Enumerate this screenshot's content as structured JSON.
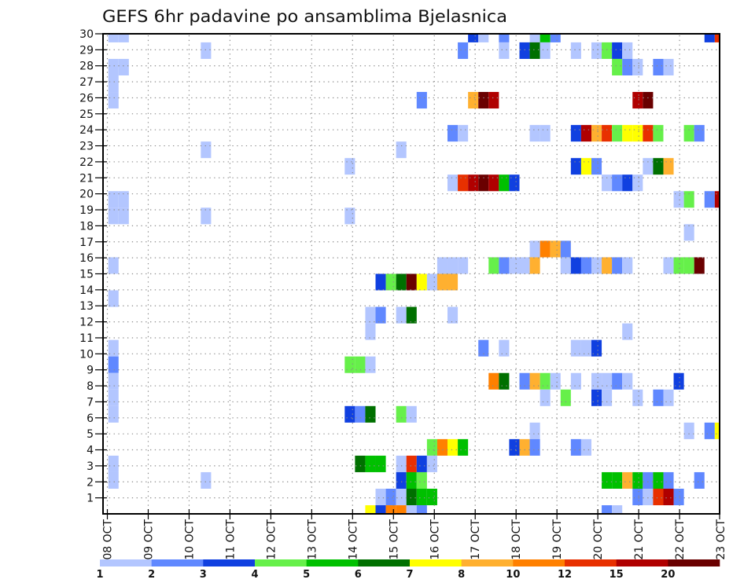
{
  "chart_data": {
    "type": "heatmap",
    "title": "GEFS 6hr padavine po ansamblima Bjelasnica",
    "xlabel": "",
    "ylabel": "",
    "x_ticks": [
      "08 OCT",
      "09 OCT",
      "10 OCT",
      "11 OCT",
      "12 OCT",
      "13 OCT",
      "14 OCT",
      "15 OCT",
      "16 OCT",
      "17 OCT",
      "18 OCT",
      "19 OCT",
      "20 OCT",
      "21 OCT",
      "22 OCT",
      "23 OCT"
    ],
    "y_ticks": [
      "1",
      "2",
      "3",
      "4",
      "5",
      "6",
      "7",
      "8",
      "9",
      "10",
      "11",
      "12",
      "13",
      "14",
      "15",
      "16",
      "17",
      "18",
      "19",
      "20",
      "21",
      "22",
      "23",
      "24",
      "25",
      "26",
      "27",
      "28",
      "29",
      "30"
    ],
    "time_steps_per_day": 4,
    "num_time_steps": 60,
    "members": 30,
    "grid": true,
    "legend_position": "bottom",
    "levels": [
      {
        "label": "1",
        "color": "#b3c6ff"
      },
      {
        "label": "2",
        "color": "#6088ff"
      },
      {
        "label": "3",
        "color": "#1040e0"
      },
      {
        "label": "4",
        "color": "#66f04a"
      },
      {
        "label": "5",
        "color": "#00c000"
      },
      {
        "label": "6",
        "color": "#007000"
      },
      {
        "label": "7",
        "color": "#ffff00"
      },
      {
        "label": "8",
        "color": "#ffb030"
      },
      {
        "label": "10",
        "color": "#ff8000"
      },
      {
        "label": "12",
        "color": "#e83000"
      },
      {
        "label": "15",
        "color": "#b00000"
      },
      {
        "label": "20",
        "color": "#6a0000"
      }
    ],
    "rows": [
      {
        "member": 30,
        "cells": [
          [
            0,
            0
          ],
          [
            1,
            0
          ],
          [
            35,
            2
          ],
          [
            36,
            0
          ],
          [
            38,
            1
          ],
          [
            41,
            0
          ],
          [
            42,
            4
          ],
          [
            43,
            1
          ],
          [
            58,
            2
          ],
          [
            59,
            9
          ]
        ]
      },
      {
        "member": 29,
        "cells": [
          [
            9,
            0
          ],
          [
            34,
            1
          ],
          [
            38,
            0
          ],
          [
            40,
            2
          ],
          [
            41,
            5
          ],
          [
            42,
            0
          ],
          [
            45,
            0
          ],
          [
            47,
            0
          ],
          [
            48,
            3
          ],
          [
            49,
            2
          ],
          [
            50,
            0
          ]
        ]
      },
      {
        "member": 28,
        "cells": [
          [
            0,
            0
          ],
          [
            1,
            0
          ],
          [
            49,
            3
          ],
          [
            50,
            1
          ],
          [
            51,
            0
          ],
          [
            53,
            1
          ],
          [
            54,
            0
          ]
        ]
      },
      {
        "member": 27,
        "cells": [
          [
            0,
            0
          ]
        ]
      },
      {
        "member": 26,
        "cells": [
          [
            0,
            0
          ],
          [
            30,
            1
          ],
          [
            35,
            7
          ],
          [
            36,
            11
          ],
          [
            37,
            10
          ],
          [
            51,
            10
          ],
          [
            52,
            11
          ]
        ]
      },
      {
        "member": 25,
        "cells": []
      },
      {
        "member": 24,
        "cells": [
          [
            33,
            1
          ],
          [
            34,
            0
          ],
          [
            41,
            0
          ],
          [
            42,
            0
          ],
          [
            45,
            2
          ],
          [
            46,
            10
          ],
          [
            47,
            7
          ],
          [
            48,
            9
          ],
          [
            49,
            3
          ],
          [
            50,
            6
          ],
          [
            51,
            6
          ],
          [
            52,
            9
          ],
          [
            53,
            3
          ],
          [
            56,
            3
          ],
          [
            57,
            1
          ]
        ]
      },
      {
        "member": 23,
        "cells": [
          [
            9,
            0
          ],
          [
            28,
            0
          ]
        ]
      },
      {
        "member": 22,
        "cells": [
          [
            23,
            0
          ],
          [
            45,
            2
          ],
          [
            46,
            6
          ],
          [
            47,
            1
          ],
          [
            52,
            0
          ],
          [
            53,
            5
          ],
          [
            54,
            7
          ]
        ]
      },
      {
        "member": 21,
        "cells": [
          [
            33,
            0
          ],
          [
            34,
            9
          ],
          [
            35,
            10
          ],
          [
            36,
            11
          ],
          [
            37,
            10
          ],
          [
            38,
            4
          ],
          [
            39,
            2
          ],
          [
            48,
            0
          ],
          [
            49,
            1
          ],
          [
            50,
            2
          ],
          [
            51,
            0
          ]
        ]
      },
      {
        "member": 20,
        "cells": [
          [
            0,
            0
          ],
          [
            1,
            0
          ],
          [
            55,
            0
          ],
          [
            56,
            3
          ],
          [
            58,
            1
          ],
          [
            59,
            10
          ]
        ]
      },
      {
        "member": 19,
        "cells": [
          [
            0,
            0
          ],
          [
            1,
            0
          ],
          [
            9,
            0
          ],
          [
            23,
            0
          ]
        ]
      },
      {
        "member": 18,
        "cells": [
          [
            56,
            0
          ]
        ]
      },
      {
        "member": 17,
        "cells": [
          [
            41,
            0
          ],
          [
            42,
            8
          ],
          [
            43,
            7
          ],
          [
            44,
            1
          ]
        ]
      },
      {
        "member": 16,
        "cells": [
          [
            0,
            0
          ],
          [
            32,
            0
          ],
          [
            33,
            0
          ],
          [
            34,
            0
          ],
          [
            37,
            3
          ],
          [
            38,
            1
          ],
          [
            39,
            0
          ],
          [
            40,
            0
          ],
          [
            41,
            7
          ],
          [
            44,
            0
          ],
          [
            45,
            2
          ],
          [
            46,
            1
          ],
          [
            47,
            0
          ],
          [
            48,
            7
          ],
          [
            49,
            1
          ],
          [
            50,
            0
          ],
          [
            54,
            0
          ],
          [
            55,
            3
          ],
          [
            56,
            3
          ],
          [
            57,
            11
          ]
        ]
      },
      {
        "member": 15,
        "cells": [
          [
            26,
            2
          ],
          [
            27,
            3
          ],
          [
            28,
            5
          ],
          [
            29,
            11
          ],
          [
            30,
            6
          ],
          [
            31,
            0
          ],
          [
            32,
            7
          ],
          [
            33,
            7
          ]
        ]
      },
      {
        "member": 14,
        "cells": [
          [
            0,
            0
          ]
        ]
      },
      {
        "member": 13,
        "cells": [
          [
            25,
            0
          ],
          [
            26,
            1
          ],
          [
            28,
            0
          ],
          [
            29,
            5
          ],
          [
            33,
            0
          ]
        ]
      },
      {
        "member": 12,
        "cells": [
          [
            25,
            0
          ],
          [
            50,
            0
          ]
        ]
      },
      {
        "member": 11,
        "cells": [
          [
            0,
            0
          ],
          [
            36,
            1
          ],
          [
            38,
            0
          ],
          [
            45,
            0
          ],
          [
            46,
            0
          ],
          [
            47,
            2
          ]
        ]
      },
      {
        "member": 10,
        "cells": [
          [
            0,
            1
          ],
          [
            23,
            3
          ],
          [
            24,
            3
          ],
          [
            25,
            0
          ]
        ]
      },
      {
        "member": 9,
        "cells": [
          [
            0,
            0
          ],
          [
            37,
            8
          ],
          [
            38,
            5
          ],
          [
            40,
            1
          ],
          [
            41,
            7
          ],
          [
            42,
            3
          ],
          [
            43,
            0
          ],
          [
            45,
            0
          ],
          [
            47,
            0
          ],
          [
            48,
            0
          ],
          [
            49,
            1
          ],
          [
            50,
            0
          ],
          [
            55,
            2
          ]
        ]
      },
      {
        "member": 8,
        "cells": [
          [
            0,
            0
          ],
          [
            42,
            0
          ],
          [
            44,
            3
          ],
          [
            47,
            2
          ],
          [
            48,
            0
          ],
          [
            51,
            0
          ],
          [
            53,
            1
          ],
          [
            54,
            0
          ]
        ]
      },
      {
        "member": 7,
        "cells": [
          [
            0,
            0
          ],
          [
            23,
            2
          ],
          [
            24,
            1
          ],
          [
            25,
            5
          ],
          [
            28,
            3
          ],
          [
            29,
            0
          ]
        ]
      },
      {
        "member": 6,
        "cells": [
          [
            41,
            0
          ],
          [
            56,
            0
          ],
          [
            58,
            1
          ],
          [
            59,
            6
          ]
        ]
      },
      {
        "member": 5,
        "cells": [
          [
            31,
            3
          ],
          [
            32,
            8
          ],
          [
            33,
            6
          ],
          [
            34,
            4
          ],
          [
            39,
            2
          ],
          [
            40,
            7
          ],
          [
            41,
            1
          ],
          [
            45,
            1
          ],
          [
            46,
            0
          ]
        ]
      },
      {
        "member": 4,
        "cells": [
          [
            0,
            0
          ],
          [
            24,
            5
          ],
          [
            25,
            4
          ],
          [
            26,
            4
          ],
          [
            28,
            0
          ],
          [
            29,
            9
          ],
          [
            30,
            2
          ],
          [
            31,
            0
          ]
        ]
      },
      {
        "member": 3,
        "cells": [
          [
            0,
            0
          ],
          [
            9,
            0
          ],
          [
            28,
            2
          ],
          [
            29,
            4
          ],
          [
            30,
            3
          ],
          [
            48,
            4
          ],
          [
            49,
            4
          ],
          [
            50,
            7
          ],
          [
            51,
            4
          ],
          [
            52,
            1
          ],
          [
            53,
            4
          ],
          [
            54,
            1
          ],
          [
            57,
            1
          ]
        ]
      },
      {
        "member": 2,
        "cells": [
          [
            26,
            0
          ],
          [
            27,
            1
          ],
          [
            28,
            0
          ],
          [
            29,
            5
          ],
          [
            30,
            4
          ],
          [
            31,
            4
          ],
          [
            51,
            1
          ],
          [
            52,
            0
          ],
          [
            53,
            9
          ],
          [
            54,
            10
          ],
          [
            55,
            1
          ]
        ]
      },
      {
        "member": 1,
        "cells": [
          [
            25,
            6
          ],
          [
            26,
            2
          ],
          [
            27,
            8
          ],
          [
            28,
            8
          ],
          [
            29,
            0
          ],
          [
            30,
            1
          ],
          [
            48,
            1
          ],
          [
            49,
            0
          ]
        ]
      }
    ]
  }
}
